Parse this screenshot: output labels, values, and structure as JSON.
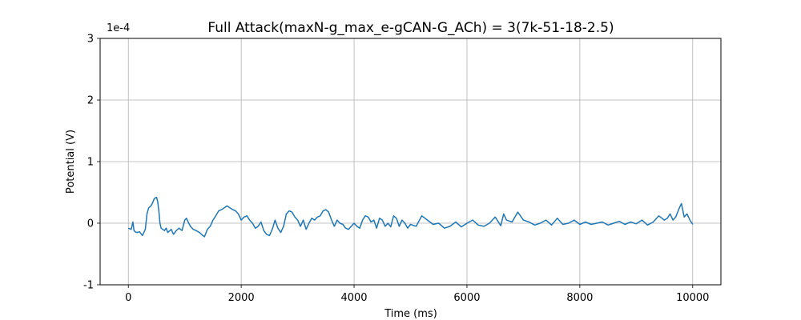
{
  "chart_data": {
    "type": "line",
    "title": "Full Attack(maxN-g_max_e-gCAN-G_ACh) = 3(7k-51-18-2.5)",
    "xlabel": "Time (ms)",
    "ylabel": "Potential (V)",
    "y_scale_label": "1e-4",
    "xlim": [
      -500,
      10500
    ],
    "ylim": [
      -1,
      3
    ],
    "y_multiplier": 0.0001,
    "x_ticks": [
      0,
      2000,
      4000,
      6000,
      8000,
      10000
    ],
    "x_tick_labels": [
      "0",
      "2000",
      "4000",
      "6000",
      "8000",
      "10000"
    ],
    "y_ticks": [
      -1,
      0,
      1,
      2,
      3
    ],
    "y_tick_labels": [
      "-1",
      "0",
      "1",
      "2",
      "3"
    ],
    "grid": true,
    "line_color": "#1f77b4",
    "series": [
      {
        "x": [
          0,
          50,
          80,
          100,
          120,
          150,
          200,
          250,
          300,
          330,
          360,
          400,
          430,
          460,
          500,
          520,
          540,
          560,
          580,
          610,
          640,
          670,
          700,
          760,
          800,
          850,
          900,
          950,
          1000,
          1030,
          1060,
          1100,
          1150,
          1200,
          1260,
          1320,
          1350,
          1400,
          1450,
          1500,
          1550,
          1600,
          1650,
          1700,
          1750,
          1800,
          1850,
          1900,
          1950,
          2000,
          2050,
          2100,
          2150,
          2200,
          2250,
          2300,
          2350,
          2400,
          2450,
          2500,
          2550,
          2600,
          2650,
          2700,
          2750,
          2800,
          2850,
          2900,
          2950,
          3000,
          3050,
          3100,
          3150,
          3200,
          3250,
          3300,
          3350,
          3400,
          3450,
          3500,
          3550,
          3600,
          3650,
          3700,
          3750,
          3800,
          3850,
          3900,
          3950,
          4000,
          4050,
          4100,
          4150,
          4200,
          4250,
          4300,
          4350,
          4400,
          4450,
          4500,
          4550,
          4600,
          4650,
          4700,
          4750,
          4800,
          4850,
          4900,
          4950,
          5000,
          5100,
          5200,
          5300,
          5400,
          5500,
          5600,
          5700,
          5800,
          5900,
          6000,
          6100,
          6200,
          6300,
          6400,
          6500,
          6600,
          6650,
          6700,
          6800,
          6900,
          7000,
          7100,
          7200,
          7300,
          7400,
          7500,
          7600,
          7700,
          7800,
          7900,
          8000,
          8100,
          8200,
          8300,
          8400,
          8500,
          8600,
          8700,
          8800,
          8900,
          9000,
          9100,
          9200,
          9300,
          9400,
          9500,
          9550,
          9600,
          9650,
          9700,
          9750,
          9800,
          9850,
          9900,
          9950,
          10000
        ],
        "values": [
          -0.08,
          -0.1,
          0.02,
          -0.12,
          -0.14,
          -0.15,
          -0.14,
          -0.2,
          -0.1,
          0.15,
          0.25,
          0.28,
          0.33,
          0.4,
          0.42,
          0.35,
          0.2,
          0.0,
          -0.08,
          -0.1,
          -0.12,
          -0.08,
          -0.15,
          -0.1,
          -0.18,
          -0.12,
          -0.08,
          -0.12,
          0.05,
          0.08,
          0.02,
          -0.05,
          -0.1,
          -0.12,
          -0.15,
          -0.2,
          -0.22,
          -0.1,
          -0.05,
          0.05,
          0.12,
          0.2,
          0.22,
          0.25,
          0.28,
          0.25,
          0.22,
          0.2,
          0.15,
          0.05,
          0.1,
          0.12,
          0.05,
          0.0,
          -0.08,
          -0.05,
          0.02,
          -0.12,
          -0.18,
          -0.2,
          -0.1,
          0.05,
          -0.08,
          -0.15,
          -0.05,
          0.15,
          0.2,
          0.18,
          0.1,
          0.05,
          -0.05,
          0.05,
          -0.1,
          0.0,
          0.08,
          0.05,
          0.1,
          0.12,
          0.2,
          0.22,
          0.18,
          0.05,
          -0.05,
          0.05,
          0.0,
          -0.02,
          -0.08,
          -0.1,
          -0.05,
          0.0,
          -0.05,
          -0.08,
          0.05,
          0.12,
          0.1,
          0.02,
          0.05,
          -0.08,
          0.08,
          0.05,
          -0.05,
          0.0,
          -0.06,
          0.12,
          0.08,
          -0.05,
          0.05,
          0.0,
          -0.08,
          -0.02,
          -0.05,
          0.12,
          0.05,
          -0.02,
          0.0,
          -0.08,
          -0.05,
          0.02,
          -0.06,
          0.0,
          0.05,
          -0.03,
          -0.05,
          0.0,
          0.1,
          -0.04,
          0.15,
          0.05,
          0.02,
          0.18,
          0.05,
          0.02,
          -0.03,
          0.0,
          0.05,
          -0.03,
          0.08,
          -0.02,
          0.0,
          0.05,
          -0.02,
          0.02,
          -0.02,
          0.0,
          0.02,
          -0.03,
          0.0,
          0.03,
          -0.02,
          0.02,
          -0.01,
          0.05,
          -0.03,
          0.02,
          0.12,
          0.05,
          0.08,
          0.15,
          0.05,
          0.1,
          0.22,
          0.32,
          0.1,
          0.15,
          0.05,
          -0.02
        ]
      }
    ]
  }
}
